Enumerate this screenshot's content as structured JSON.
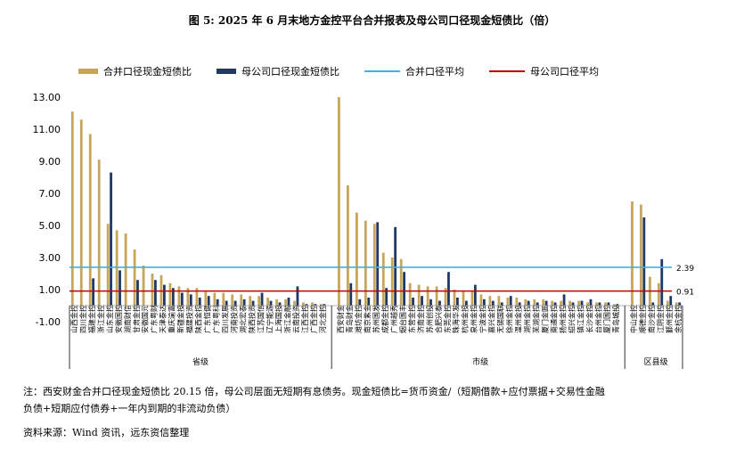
{
  "title": "图 5:  2025 年 6 月末地方金控平台合并报表及母公司口径现金短债比（倍）",
  "note1": "注：西安财金合并口径现金短债比 20.15 倍，母公司层面无短期有息债务。现金短债比=货币资金/（短期借款+应付票据+交易性金融",
  "note2": "负债+短期应付债券+一年内到期的非流动负债）",
  "source": "资料来源：Wind 资讯，远东资信整理",
  "chart_data": {
    "type": "bar",
    "series": [
      {
        "name": "合并口径现金短债比",
        "color": "#C9A55A"
      },
      {
        "name": "母公司口径现金短债比",
        "color": "#1F3864"
      },
      {
        "name": "合并口径平均",
        "color": "#3BB4E5",
        "value": 2.39
      },
      {
        "name": "母公司口径平均",
        "color": "#C00000",
        "value": 0.91
      }
    ],
    "avg_labels": [
      "2.39",
      "0.91"
    ],
    "ylim": [
      -1,
      13
    ],
    "yticks": [
      "13.00",
      "11.00",
      "9.00",
      "7.00",
      "5.00",
      "3.00",
      "1.00",
      "-1.00"
    ],
    "groups": [
      "省级",
      "市级",
      "区县级"
    ],
    "categories": [
      {
        "name": "山西金控",
        "group": 0,
        "a": 12.1,
        "b": 0.0
      },
      {
        "name": "四川金控",
        "group": 0,
        "a": 11.6,
        "b": 0.0
      },
      {
        "name": "福建金控",
        "group": 0,
        "a": 10.7,
        "b": 1.7
      },
      {
        "name": "浙江金控",
        "group": 0,
        "a": 9.1,
        "b": 0.0
      },
      {
        "name": "山东金控",
        "group": 0,
        "a": 5.1,
        "b": 8.3
      },
      {
        "name": "安徽国控",
        "group": 0,
        "a": 4.7,
        "b": 2.2
      },
      {
        "name": "湖南财信",
        "group": 0,
        "a": 4.5,
        "b": 0.0
      },
      {
        "name": "甘肃金控",
        "group": 0,
        "a": 3.5,
        "b": 1.6
      },
      {
        "name": "安徽国元",
        "group": 0,
        "a": 2.5,
        "b": 0.0
      },
      {
        "name": "广东粤财",
        "group": 0,
        "a": 2.0,
        "b": 1.6
      },
      {
        "name": "天津泰达",
        "group": 0,
        "a": 1.9,
        "b": 1.3
      },
      {
        "name": "重庆渝富",
        "group": 0,
        "a": 1.4,
        "b": 1.1
      },
      {
        "name": "新疆金投",
        "group": 0,
        "a": 1.2,
        "b": 0.8
      },
      {
        "name": "福建投资",
        "group": 0,
        "a": 1.1,
        "b": 0.7
      },
      {
        "name": "陕西金控",
        "group": 0,
        "a": 1.1,
        "b": 0.5
      },
      {
        "name": "广东恒健",
        "group": 0,
        "a": 0.9,
        "b": 0.6
      },
      {
        "name": "广东粤科",
        "group": 0,
        "a": 0.8,
        "b": 0.4
      },
      {
        "name": "四川发展",
        "group": 0,
        "a": 0.8,
        "b": 0.3
      },
      {
        "name": "河南投资",
        "group": 0,
        "a": 0.7,
        "b": 0.3
      },
      {
        "name": "湖北宏泰",
        "group": 0,
        "a": 0.7,
        "b": 0.4
      },
      {
        "name": "陕西投资",
        "group": 0,
        "a": 0.6,
        "b": 0.3
      },
      {
        "name": "江苏国信",
        "group": 0,
        "a": 0.6,
        "b": 0.8
      },
      {
        "name": "辽宁能源",
        "group": 0,
        "a": 0.5,
        "b": 0.3
      },
      {
        "name": "上海国投",
        "group": 0,
        "a": 0.4,
        "b": 0.2
      },
      {
        "name": "浙江金融",
        "group": 0,
        "a": 0.4,
        "b": 0.5
      },
      {
        "name": "云南投资",
        "group": 0,
        "a": 0.3,
        "b": 1.2
      },
      {
        "name": "江西金控",
        "group": 0,
        "a": 0.2,
        "b": 0.1
      },
      {
        "name": "广西金控",
        "group": 0,
        "a": 0.2,
        "b": 0.1
      },
      {
        "name": "河北金控",
        "group": 0,
        "a": 0.1,
        "b": 0.1
      },
      {
        "name": "西安财金",
        "group": 1,
        "a": 13.0,
        "b": 0.0
      },
      {
        "name": "青岛财金",
        "group": 1,
        "a": 7.5,
        "b": 1.4
      },
      {
        "name": "潍坊金控",
        "group": 1,
        "a": 5.8,
        "b": 0.4
      },
      {
        "name": "南京紫金",
        "group": 1,
        "a": 5.3,
        "b": 0.5
      },
      {
        "name": "苏州国发",
        "group": 1,
        "a": 5.1,
        "b": 5.2
      },
      {
        "name": "成都金控",
        "group": 1,
        "a": 3.3,
        "b": 1.1
      },
      {
        "name": "广州越秀",
        "group": 1,
        "a": 3.0,
        "b": 4.9
      },
      {
        "name": "烟台国丰",
        "group": 1,
        "a": 2.9,
        "b": 2.1
      },
      {
        "name": "东营金控",
        "group": 1,
        "a": 1.4,
        "b": 0.5
      },
      {
        "name": "济南金控",
        "group": 1,
        "a": 1.3,
        "b": 0.6
      },
      {
        "name": "苏州创投",
        "group": 1,
        "a": 1.2,
        "b": 0.4
      },
      {
        "name": "合肥兴泰",
        "group": 1,
        "a": 1.2,
        "b": 0.3
      },
      {
        "name": "东莞金控",
        "group": 1,
        "a": 1.1,
        "b": 2.1
      },
      {
        "name": "珠海华发",
        "group": 1,
        "a": 1.0,
        "b": 0.5
      },
      {
        "name": "杭州金投",
        "group": 1,
        "a": 0.9,
        "b": 0.3
      },
      {
        "name": "泉州金控",
        "group": 1,
        "a": 0.9,
        "b": 1.3
      },
      {
        "name": "宁波金控",
        "group": 1,
        "a": 0.7,
        "b": 0.4
      },
      {
        "name": "嘉兴金控",
        "group": 1,
        "a": 0.6,
        "b": 0.3
      },
      {
        "name": "无锡国联",
        "group": 1,
        "a": 0.6,
        "b": 0.2
      },
      {
        "name": "徐州金控",
        "group": 1,
        "a": 0.5,
        "b": 0.6
      },
      {
        "name": "温州金投",
        "group": 1,
        "a": 0.5,
        "b": 0.2
      },
      {
        "name": "湖州金控",
        "group": 1,
        "a": 0.4,
        "b": 0.3
      },
      {
        "name": "芜湖金控",
        "group": 1,
        "a": 0.4,
        "b": 0.2
      },
      {
        "name": "厦门金圆",
        "group": 1,
        "a": 0.4,
        "b": 0.3
      },
      {
        "name": "南通金控",
        "group": 1,
        "a": 0.3,
        "b": 0.2
      },
      {
        "name": "扬州金控",
        "group": 1,
        "a": 0.3,
        "b": 0.7
      },
      {
        "name": "绍兴金控",
        "group": 1,
        "a": 0.3,
        "b": 0.2
      },
      {
        "name": "镇江金控",
        "group": 1,
        "a": 0.3,
        "b": 0.3
      },
      {
        "name": "长沙金控",
        "group": 1,
        "a": 0.2,
        "b": 0.4
      },
      {
        "name": "台州金控",
        "group": 1,
        "a": 0.2,
        "b": 0.2
      },
      {
        "name": "厦门国控",
        "group": 1,
        "a": 0.2,
        "b": 0.2
      },
      {
        "name": "青岛城投",
        "group": 1,
        "a": 0.1,
        "b": 0.1
      },
      {
        "name": "中山金控",
        "group": 2,
        "a": 6.5,
        "b": 0.0
      },
      {
        "name": "顺德金控",
        "group": 2,
        "a": 6.3,
        "b": 5.5
      },
      {
        "name": "南沙金控",
        "group": 2,
        "a": 1.8,
        "b": 0.2
      },
      {
        "name": "江阴金控",
        "group": 2,
        "a": 1.4,
        "b": 2.9
      },
      {
        "name": "鄞州金控",
        "group": 2,
        "a": 0.3,
        "b": 0.6
      },
      {
        "name": "余杭金控",
        "group": 2,
        "a": 0.2,
        "b": 0.2
      }
    ]
  }
}
